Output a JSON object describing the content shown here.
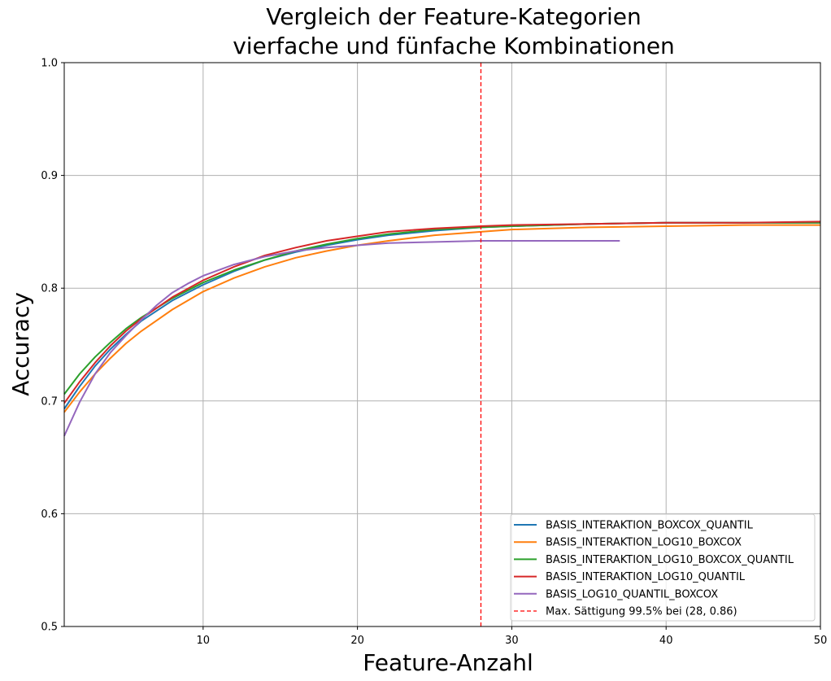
{
  "chart_data": {
    "type": "line",
    "title": [
      "Vergleich der Feature-Kategorien",
      "vierfache und fünfache Kombinationen"
    ],
    "xlabel": "Feature-Anzahl",
    "ylabel": "Accuracy",
    "xlim": [
      1,
      50
    ],
    "ylim": [
      0.5,
      1.0
    ],
    "xticks": [
      10,
      20,
      30,
      40,
      50
    ],
    "xtick_labels": [
      "10",
      "20",
      "30",
      "40",
      "50"
    ],
    "yticks": [
      0.5,
      0.6,
      0.7,
      0.8,
      0.9,
      1.0
    ],
    "ytick_labels": [
      "0.5",
      "0.6",
      "0.7",
      "0.8",
      "0.9",
      "1.0"
    ],
    "grid": true,
    "legend_position": "lower-right",
    "series": [
      {
        "name": "BASIS_INTERAKTION_BOXCOX_QUANTIL",
        "color": "#1f77b4",
        "x": [
          1,
          2,
          3,
          4,
          5,
          6,
          8,
          10,
          12,
          14,
          16,
          18,
          20,
          22,
          25,
          28,
          30,
          35,
          40,
          45,
          50
        ],
        "y": [
          0.693,
          0.713,
          0.731,
          0.746,
          0.759,
          0.771,
          0.789,
          0.803,
          0.815,
          0.825,
          0.832,
          0.838,
          0.843,
          0.847,
          0.851,
          0.854,
          0.855,
          0.857,
          0.858,
          0.858,
          0.858
        ]
      },
      {
        "name": "BASIS_INTERAKTION_LOG10_BOXCOX",
        "color": "#ff7f0e",
        "x": [
          1,
          2,
          3,
          4,
          5,
          6,
          8,
          10,
          12,
          14,
          16,
          18,
          20,
          22,
          25,
          28,
          30,
          35,
          40,
          45,
          50
        ],
        "y": [
          0.69,
          0.708,
          0.724,
          0.738,
          0.751,
          0.762,
          0.781,
          0.797,
          0.809,
          0.819,
          0.827,
          0.833,
          0.838,
          0.842,
          0.847,
          0.85,
          0.852,
          0.854,
          0.855,
          0.856,
          0.856
        ]
      },
      {
        "name": "BASIS_INTERAKTION_LOG10_BOXCOX_QUANTIL",
        "color": "#2ca02c",
        "x": [
          1,
          2,
          3,
          4,
          5,
          6,
          8,
          10,
          12,
          14,
          16,
          18,
          20,
          22,
          25,
          28,
          30,
          35,
          40,
          45,
          50
        ],
        "y": [
          0.706,
          0.724,
          0.739,
          0.752,
          0.764,
          0.774,
          0.791,
          0.805,
          0.816,
          0.825,
          0.833,
          0.839,
          0.844,
          0.848,
          0.852,
          0.854,
          0.855,
          0.857,
          0.858,
          0.858,
          0.858
        ]
      },
      {
        "name": "BASIS_INTERAKTION_LOG10_QUANTIL",
        "color": "#d62728",
        "x": [
          1,
          2,
          3,
          4,
          5,
          6,
          8,
          10,
          12,
          14,
          16,
          18,
          20,
          22,
          25,
          28,
          30,
          35,
          40,
          45,
          50
        ],
        "y": [
          0.698,
          0.717,
          0.734,
          0.749,
          0.762,
          0.773,
          0.792,
          0.807,
          0.819,
          0.829,
          0.836,
          0.842,
          0.846,
          0.85,
          0.853,
          0.855,
          0.856,
          0.857,
          0.858,
          0.858,
          0.859
        ]
      },
      {
        "name": "BASIS_LOG10_QUANTIL_BOXCOX",
        "color": "#9467bd",
        "x": [
          1,
          2,
          3,
          4,
          5,
          6,
          7,
          8,
          9,
          10,
          12,
          14,
          16,
          18,
          20,
          22,
          25,
          28,
          30,
          33,
          37
        ],
        "y": [
          0.669,
          0.699,
          0.724,
          0.743,
          0.758,
          0.772,
          0.785,
          0.796,
          0.804,
          0.811,
          0.821,
          0.828,
          0.833,
          0.836,
          0.838,
          0.84,
          0.841,
          0.842,
          0.842,
          0.842,
          0.842
        ]
      }
    ],
    "vline": {
      "label": "Max. Sättigung 99.5% bei (28, 0.86)",
      "x": 28,
      "color": "#ff0000"
    }
  }
}
